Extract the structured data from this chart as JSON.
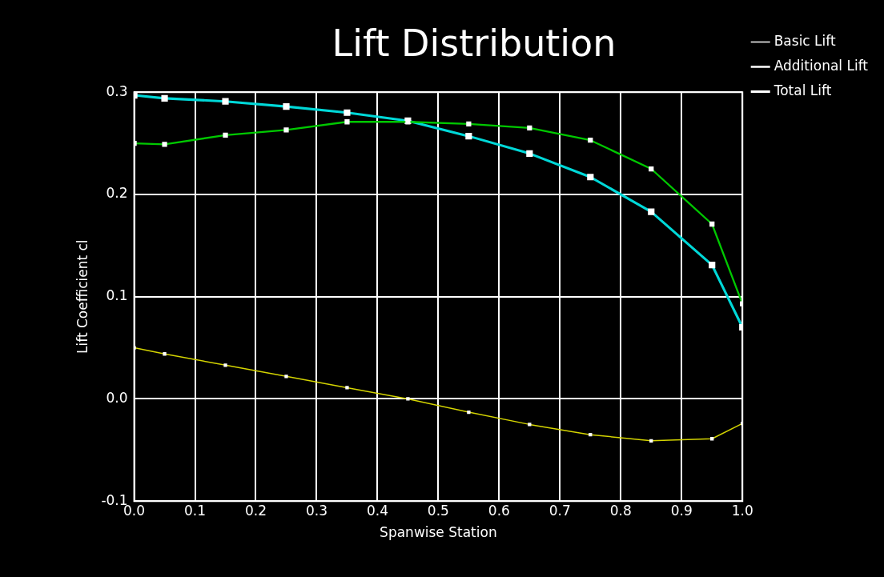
{
  "chart_data": {
    "type": "line",
    "title": "Lift Distribution",
    "xlabel": "Spanwise Station",
    "ylabel": "Lift Coefficient cl",
    "x": [
      0,
      0.05,
      0.15,
      0.25,
      0.35,
      0.45,
      0.55,
      0.65,
      0.75,
      0.85,
      0.95,
      1.0
    ],
    "series": [
      {
        "name": "Basic Lift",
        "color": "#d4d400",
        "values": [
          0.05,
          0.044,
          0.033,
          0.022,
          0.011,
          0.0,
          -0.013,
          -0.025,
          -0.035,
          -0.041,
          -0.039,
          -0.024
        ]
      },
      {
        "name": "Additional Lift",
        "color": "#00c800",
        "values": [
          0.25,
          0.249,
          0.258,
          0.263,
          0.271,
          0.271,
          0.269,
          0.265,
          0.253,
          0.225,
          0.171,
          0.093
        ]
      },
      {
        "name": "Total Lift",
        "color": "#00d8d8",
        "values": [
          0.297,
          0.294,
          0.291,
          0.286,
          0.28,
          0.272,
          0.257,
          0.24,
          0.217,
          0.183,
          0.131,
          0.07
        ]
      }
    ],
    "xlim": [
      0,
      1
    ],
    "xticks": [
      {
        "value": 0,
        "label": "0.0"
      },
      0.1,
      0.2,
      0.3,
      0.4,
      0.5,
      0.6,
      0.7,
      0.8,
      0.9,
      {
        "value": 1,
        "label": "1.0"
      }
    ],
    "ylim": [
      -0.1,
      0.3
    ],
    "yticks": [
      -0.1,
      {
        "value": 0,
        "label": "0.0"
      },
      0.1,
      0.2,
      0.3
    ],
    "grid": true,
    "legend": "top right",
    "marker": "square",
    "line_style": "solid"
  }
}
